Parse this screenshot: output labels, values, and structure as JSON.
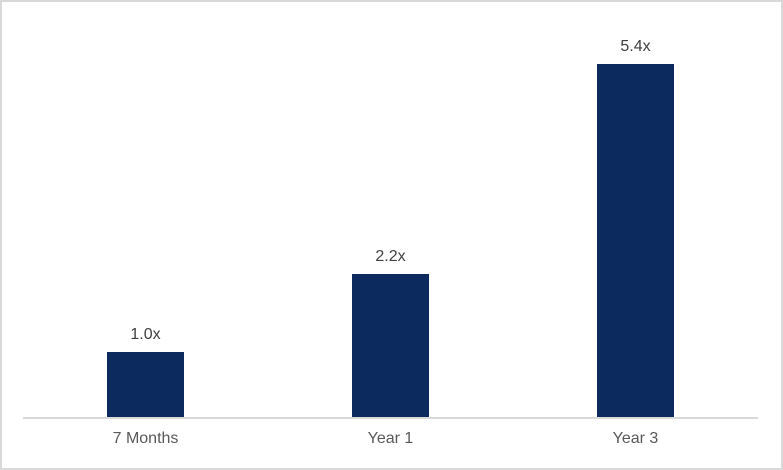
{
  "chart_data": {
    "type": "bar",
    "title": "",
    "xlabel": "",
    "ylabel": "",
    "categories": [
      "7 Months",
      "Year 1",
      "Year 3"
    ],
    "values": [
      1.0,
      2.2,
      5.4
    ],
    "data_labels": [
      "1.0x",
      "2.2x",
      "5.4x"
    ],
    "ylim": [
      0,
      5.5
    ],
    "grid": false,
    "legend": false,
    "y_axis_visible": false,
    "bar_color": "#0d2a5e",
    "axis_line_color": "#d9d9d9",
    "data_label_color": "#404040",
    "category_label_color": "#595959",
    "background_color": "#ffffff",
    "border_color": "#d9d9d9"
  }
}
